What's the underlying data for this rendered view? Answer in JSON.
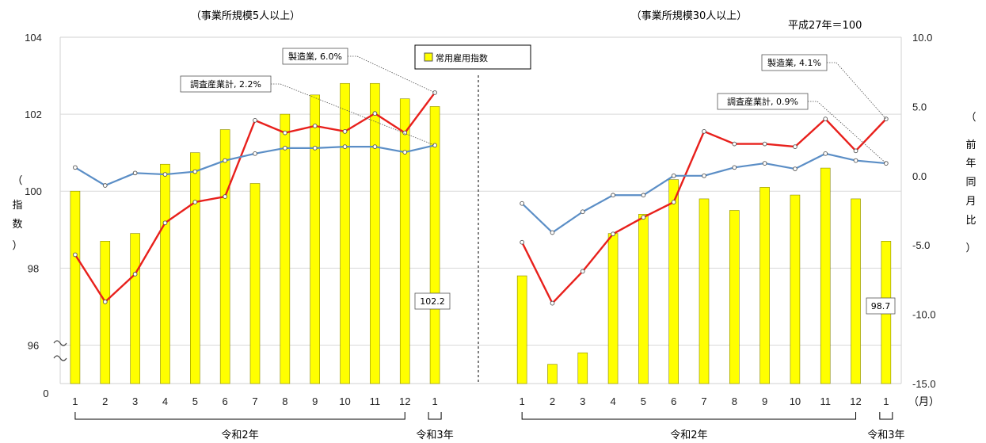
{
  "chart_data": {
    "type": "bar+line",
    "base_note": "平成27年＝100",
    "month_unit": "（月）",
    "left_axis": {
      "ticks": [
        104,
        102,
        100,
        98,
        96
      ],
      "zero_label": "0",
      "label": [
        "（",
        "指",
        "数",
        "）"
      ],
      "range": [
        95,
        104
      ]
    },
    "right_axis": {
      "ticks": [
        "10.0",
        "5.0",
        "0.0",
        "-5.0",
        "-10.0",
        "-15.0"
      ],
      "label": [
        "（",
        "前",
        "年",
        "同",
        "月",
        "比",
        "）"
      ],
      "range": [
        -15,
        10
      ]
    },
    "legend": {
      "label": "常用雇用指数",
      "color": "#ffff00"
    },
    "colors": {
      "bar": "#ffff00",
      "bar_stroke": "#888800",
      "manufacturing": "#e8201c",
      "total": "#5b8ec6"
    },
    "panels": [
      {
        "subtitle": "（事業所規模5人以上）",
        "months": [
          "1",
          "2",
          "3",
          "4",
          "5",
          "6",
          "7",
          "8",
          "9",
          "10",
          "11",
          "12",
          "1"
        ],
        "year_labels": [
          "令和2年",
          "令和3年"
        ],
        "bar_values": [
          100.0,
          98.7,
          98.9,
          100.7,
          101.0,
          101.6,
          100.2,
          102.0,
          102.5,
          102.8,
          102.8,
          102.4,
          102.2
        ],
        "series": [
          {
            "name": "製造業",
            "values": [
              -5.7,
              -9.1,
              -7.1,
              -3.4,
              -1.9,
              -1.5,
              4.0,
              3.1,
              3.6,
              3.2,
              4.5,
              3.1,
              6.0
            ]
          },
          {
            "name": "調査産業計",
            "values": [
              0.6,
              -0.7,
              0.2,
              0.1,
              0.3,
              1.1,
              1.6,
              2.0,
              2.0,
              2.1,
              2.1,
              1.7,
              2.2
            ]
          }
        ],
        "annotations": [
          {
            "text": "製造業, 6.0%",
            "series": 0
          },
          {
            "text": "調査産業計, 2.2%",
            "series": 1
          },
          {
            "text": "102.2",
            "bar": 12
          }
        ]
      },
      {
        "subtitle": "（事業所規模30人以上）",
        "months": [
          "1",
          "2",
          "3",
          "4",
          "5",
          "6",
          "7",
          "8",
          "9",
          "10",
          "11",
          "12",
          "1"
        ],
        "year_labels": [
          "令和2年",
          "令和3年"
        ],
        "bar_values": [
          97.8,
          95.5,
          95.8,
          98.9,
          99.4,
          100.3,
          99.8,
          99.5,
          100.1,
          99.9,
          100.6,
          99.8,
          98.7
        ],
        "series": [
          {
            "name": "製造業",
            "values": [
              -4.8,
              -9.2,
              -6.9,
              -4.2,
              -3.0,
              -1.9,
              3.2,
              2.3,
              2.3,
              2.1,
              4.1,
              1.8,
              4.1
            ]
          },
          {
            "name": "調査産業計",
            "values": [
              -2.0,
              -4.1,
              -2.6,
              -1.4,
              -1.4,
              0.0,
              0.0,
              0.6,
              0.9,
              0.5,
              1.6,
              1.1,
              0.9
            ]
          }
        ],
        "annotations": [
          {
            "text": "製造業, 4.1%",
            "series": 0
          },
          {
            "text": "調査産業計, 0.9%",
            "series": 1
          },
          {
            "text": "98.7",
            "bar": 12
          }
        ]
      }
    ]
  }
}
